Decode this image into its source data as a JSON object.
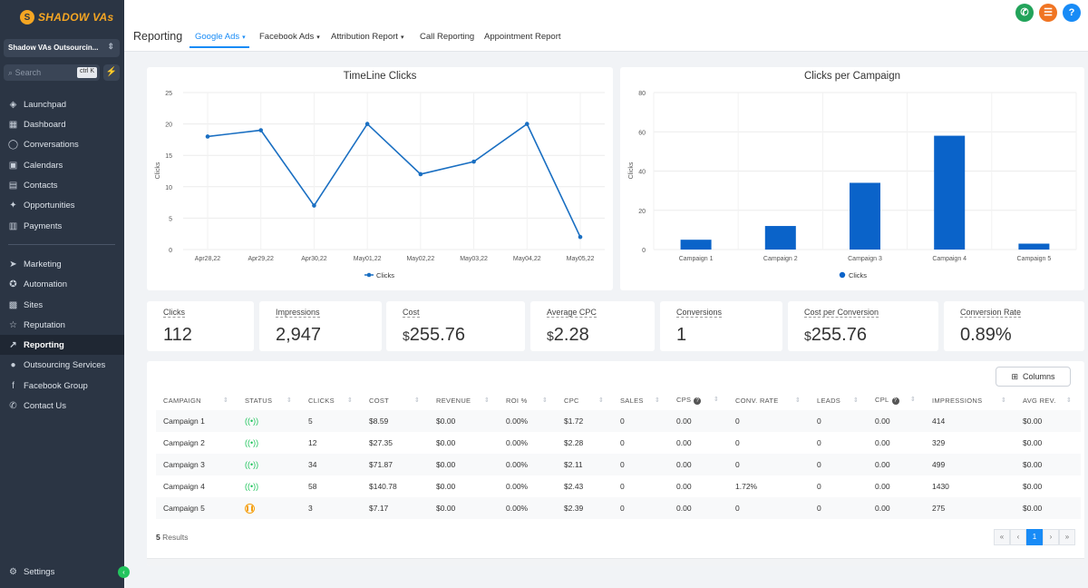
{
  "sidebar": {
    "logo_text": "SHADOW VAs",
    "account_name": "Shadow VAs Outsourcin...",
    "search_placeholder": "Search",
    "search_shortcut": "ctrl K",
    "items": [
      {
        "label": "Launchpad",
        "icon": "rocket-icon",
        "glyph": "◈"
      },
      {
        "label": "Dashboard",
        "icon": "dashboard-icon",
        "glyph": "▦"
      },
      {
        "label": "Conversations",
        "icon": "chat-icon",
        "glyph": "◯"
      },
      {
        "label": "Calendars",
        "icon": "calendar-icon",
        "glyph": "▣"
      },
      {
        "label": "Contacts",
        "icon": "contacts-icon",
        "glyph": "▤"
      },
      {
        "label": "Opportunities",
        "icon": "opportunities-icon",
        "glyph": "✦"
      },
      {
        "label": "Payments",
        "icon": "payments-icon",
        "glyph": "▥"
      },
      {
        "label": "Marketing",
        "icon": "marketing-icon",
        "glyph": "➤"
      },
      {
        "label": "Automation",
        "icon": "automation-icon",
        "glyph": "✪"
      },
      {
        "label": "Sites",
        "icon": "sites-icon",
        "glyph": "▩"
      },
      {
        "label": "Reputation",
        "icon": "star-icon",
        "glyph": "☆"
      },
      {
        "label": "Reporting",
        "icon": "chart-line-icon",
        "glyph": "↗"
      },
      {
        "label": "Outsourcing Services",
        "icon": "users-icon",
        "glyph": "●"
      },
      {
        "label": "Facebook Group",
        "icon": "facebook-icon",
        "glyph": "f"
      },
      {
        "label": "Contact Us",
        "icon": "phone-icon",
        "glyph": "✆"
      }
    ],
    "settings_label": "Settings"
  },
  "header": {
    "title": "Reporting",
    "tabs": [
      {
        "label": "Google Ads",
        "dropdown": true
      },
      {
        "label": "Facebook Ads",
        "dropdown": true
      },
      {
        "label": "Attribution Report",
        "dropdown": true
      },
      {
        "label": "Call Reporting",
        "dropdown": false
      },
      {
        "label": "Appointment Report",
        "dropdown": false
      }
    ]
  },
  "timeline_chart": {
    "title": "TimeLine Clicks",
    "legend": "Clicks"
  },
  "campaign_chart": {
    "title": "Clicks per Campaign",
    "legend": "Clicks"
  },
  "chart_data": [
    {
      "type": "line",
      "title": "TimeLine Clicks",
      "xlabel": "",
      "ylabel": "Clicks",
      "x": [
        "Apr28,22",
        "Apr29,22",
        "Apr30,22",
        "May01,22",
        "May02,22",
        "May03,22",
        "May04,22",
        "May05,22"
      ],
      "series": [
        {
          "name": "Clicks",
          "values": [
            18,
            19,
            7,
            20,
            12,
            14,
            20,
            2
          ]
        }
      ],
      "yticks": [
        0,
        5,
        10,
        15,
        20,
        25
      ],
      "ylim": [
        0,
        25
      ],
      "grid": true,
      "legend": "bottom",
      "color": "#1a6fc2"
    },
    {
      "type": "bar",
      "title": "Clicks per Campaign",
      "xlabel": "",
      "ylabel": "Clicks",
      "categories": [
        "Campaign 1",
        "Campaign 2",
        "Campaign 3",
        "Campaign 4",
        "Campaign 5"
      ],
      "series": [
        {
          "name": "Clicks",
          "values": [
            5,
            12,
            34,
            58,
            3
          ]
        }
      ],
      "yticks": [
        0,
        20,
        40,
        60,
        80
      ],
      "ylim": [
        0,
        80
      ],
      "grid": true,
      "legend": "bottom",
      "color": "#0a63c9"
    }
  ],
  "kpis": [
    {
      "label": "Clicks",
      "currency": "",
      "value": "112"
    },
    {
      "label": "Impressions",
      "currency": "",
      "value": "2,947"
    },
    {
      "label": "Cost",
      "currency": "$",
      "value": "255.76"
    },
    {
      "label": "Average CPC",
      "currency": "$",
      "value": "2.28"
    },
    {
      "label": "Conversions",
      "currency": "",
      "value": "1"
    },
    {
      "label": "Cost per Conversion",
      "currency": "$",
      "value": "255.76"
    },
    {
      "label": "Conversion Rate",
      "currency": "",
      "value": "0.89%"
    }
  ],
  "table": {
    "columns_button": "Columns",
    "headers": [
      "CAMPAIGN",
      "STATUS",
      "CLICKS",
      "COST",
      "REVENUE",
      "ROI %",
      "CPC",
      "SALES",
      "CPS",
      "CONV. RATE",
      "LEADS",
      "CPL",
      "IMPRESSIONS",
      "AVG REV."
    ],
    "rows": [
      {
        "campaign": "Campaign 1",
        "status": "active",
        "clicks": "5",
        "cost": "$8.59",
        "revenue": "$0.00",
        "roi": "0.00%",
        "cpc": "$1.72",
        "sales": "0",
        "cps": "0.00",
        "conv_rate": "0",
        "leads": "0",
        "cpl": "0.00",
        "impressions": "414",
        "avg_rev": "$0.00"
      },
      {
        "campaign": "Campaign 2",
        "status": "active",
        "clicks": "12",
        "cost": "$27.35",
        "revenue": "$0.00",
        "roi": "0.00%",
        "cpc": "$2.28",
        "sales": "0",
        "cps": "0.00",
        "conv_rate": "0",
        "leads": "0",
        "cpl": "0.00",
        "impressions": "329",
        "avg_rev": "$0.00"
      },
      {
        "campaign": "Campaign 3",
        "status": "active",
        "clicks": "34",
        "cost": "$71.87",
        "revenue": "$0.00",
        "roi": "0.00%",
        "cpc": "$2.11",
        "sales": "0",
        "cps": "0.00",
        "conv_rate": "0",
        "leads": "0",
        "cpl": "0.00",
        "impressions": "499",
        "avg_rev": "$0.00"
      },
      {
        "campaign": "Campaign 4",
        "status": "active",
        "clicks": "58",
        "cost": "$140.78",
        "revenue": "$0.00",
        "roi": "0.00%",
        "cpc": "$2.43",
        "sales": "0",
        "cps": "0.00",
        "conv_rate": "1.72%",
        "leads": "0",
        "cpl": "0.00",
        "impressions": "1430",
        "avg_rev": "$0.00"
      },
      {
        "campaign": "Campaign 5",
        "status": "paused",
        "clicks": "3",
        "cost": "$7.17",
        "revenue": "$0.00",
        "roi": "0.00%",
        "cpc": "$2.39",
        "sales": "0",
        "cps": "0.00",
        "conv_rate": "0",
        "leads": "0",
        "cpl": "0.00",
        "impressions": "275",
        "avg_rev": "$0.00"
      }
    ],
    "results_count": "5",
    "results_label": "Results",
    "pagination": {
      "first": "«",
      "prev": "‹",
      "current": "1",
      "next": "›",
      "last": "»"
    }
  },
  "colors": {
    "accent": "#188bf6",
    "sidebar": "#2b3544",
    "call": "#22a35a",
    "list": "#f07422",
    "help": "#188bf6"
  }
}
